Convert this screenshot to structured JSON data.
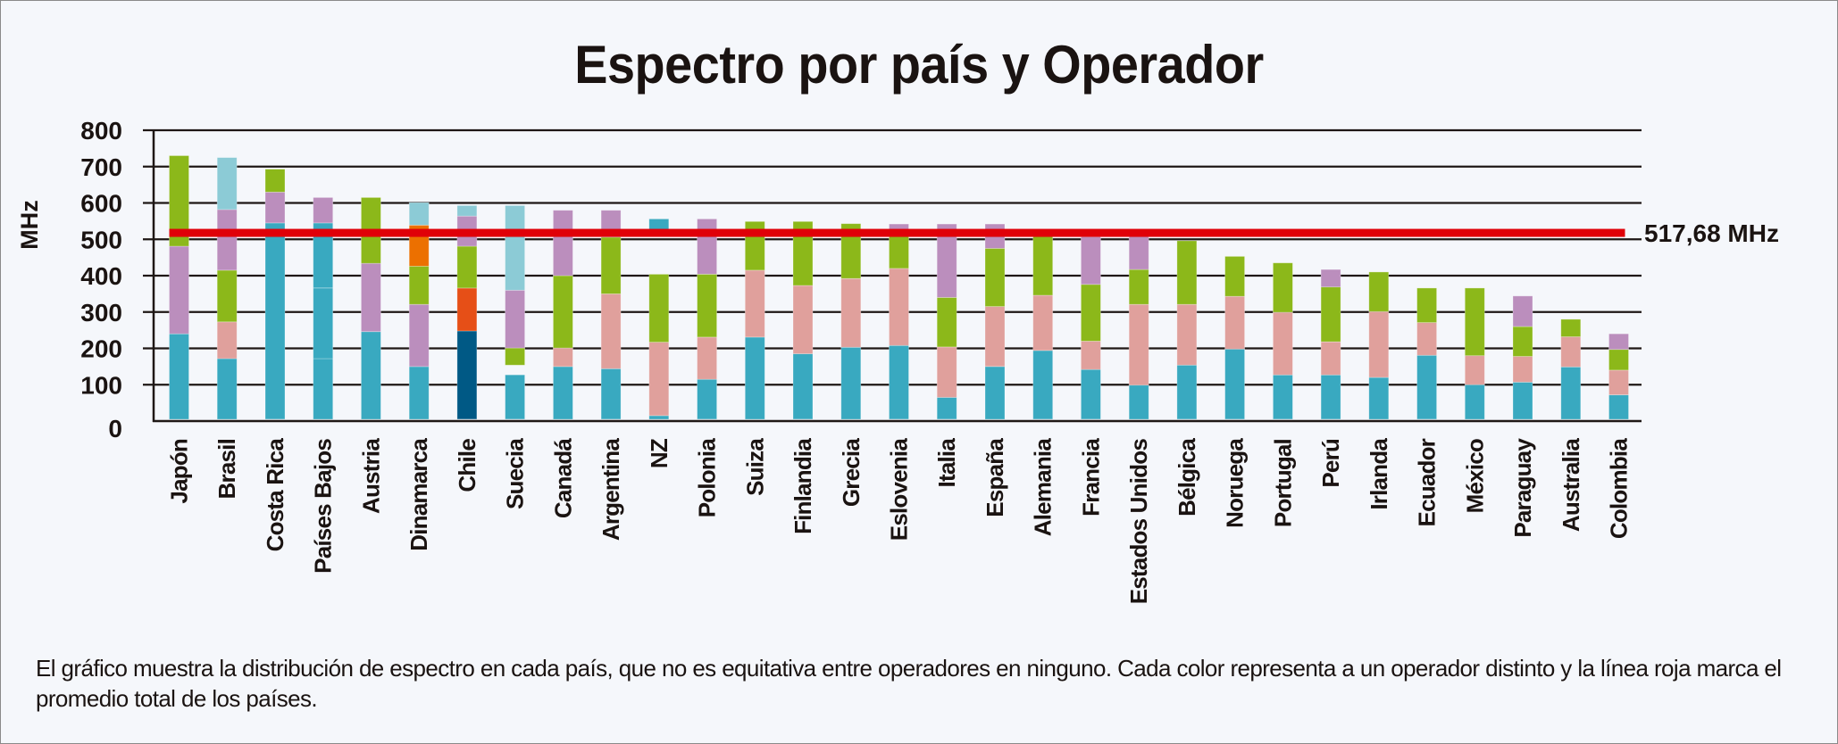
{
  "chart_data": {
    "type": "bar",
    "stacked": true,
    "title": "Espectro por país y Operador",
    "xlabel": "",
    "ylabel": "MHz",
    "ylim": [
      0,
      800
    ],
    "yticks": [
      "0",
      "100",
      "200",
      "300",
      "400",
      "500",
      "600",
      "700",
      "800"
    ],
    "grid": true,
    "legend": "none",
    "average": {
      "value": 517.68,
      "label": "517,68 MHz",
      "color": "#e00008"
    },
    "colors": {
      "teal": "#39a9c0",
      "lightblue": "#8ccbd6",
      "purple": "#bb8ebd",
      "green": "#8cb81a",
      "pink": "#e0a09c",
      "orange": "#ec7000",
      "redorange": "#e64f17",
      "darkblue": "#005985"
    },
    "categories": [
      "Japón",
      "Brasil",
      "Costa Rica",
      "Países Bajos",
      "Austria",
      "Dinamarca",
      "Chile",
      "Suecia",
      "Canadá",
      "Argentina",
      "NZ",
      "Polonia",
      "Suiza",
      "Finlandia",
      "Grecia",
      "Eslovenia",
      "Italia",
      "España",
      "Alemania",
      "Francia",
      "Estados Unidos",
      "Bélgica",
      "Noruega",
      "Portugal",
      "Perú",
      "Irlanda",
      "Ecuador",
      "México",
      "Paraguay",
      "Australia",
      "Colombia"
    ],
    "bars": [
      {
        "country": "Japón",
        "segments": [
          {
            "from": 5,
            "to": 240,
            "color": "teal"
          },
          {
            "from": 240,
            "to": 481,
            "color": "purple"
          },
          {
            "from": 481,
            "to": 730,
            "color": "green"
          }
        ]
      },
      {
        "country": "Brasil",
        "segments": [
          {
            "from": 5,
            "to": 172,
            "color": "teal"
          },
          {
            "from": 172,
            "to": 273,
            "color": "pink"
          },
          {
            "from": 273,
            "to": 415,
            "color": "green"
          },
          {
            "from": 415,
            "to": 582,
            "color": "purple"
          },
          {
            "from": 582,
            "to": 725,
            "color": "lightblue"
          }
        ]
      },
      {
        "country": "Costa Rica",
        "segments": [
          {
            "from": 5,
            "to": 545,
            "color": "teal"
          },
          {
            "from": 545,
            "to": 630,
            "color": "purple"
          },
          {
            "from": 630,
            "to": 693,
            "color": "green"
          }
        ]
      },
      {
        "country": "Países Bajos",
        "segments": [
          {
            "from": 5,
            "to": 172,
            "color": "teal"
          },
          {
            "from": 172,
            "to": 366,
            "color": "teal"
          },
          {
            "from": 366,
            "to": 545,
            "color": "teal"
          },
          {
            "from": 545,
            "to": 615,
            "color": "purple"
          }
        ]
      },
      {
        "country": "Austria",
        "segments": [
          {
            "from": 5,
            "to": 246,
            "color": "teal"
          },
          {
            "from": 246,
            "to": 434,
            "color": "purple"
          },
          {
            "from": 434,
            "to": 615,
            "color": "green"
          }
        ]
      },
      {
        "country": "Dinamarca",
        "segments": [
          {
            "from": 5,
            "to": 150,
            "color": "teal"
          },
          {
            "from": 150,
            "to": 321,
            "color": "purple"
          },
          {
            "from": 321,
            "to": 426,
            "color": "green"
          },
          {
            "from": 426,
            "to": 539,
            "color": "orange"
          },
          {
            "from": 539,
            "to": 601,
            "color": "lightblue"
          }
        ]
      },
      {
        "country": "Chile",
        "segments": [
          {
            "from": 5,
            "to": 248,
            "color": "darkblue"
          },
          {
            "from": 248,
            "to": 366,
            "color": "redorange"
          },
          {
            "from": 366,
            "to": 481,
            "color": "green"
          },
          {
            "from": 481,
            "to": 564,
            "color": "purple"
          },
          {
            "from": 564,
            "to": 593,
            "color": "lightblue"
          }
        ]
      },
      {
        "country": "Suecia",
        "segments": [
          {
            "from": 5,
            "to": 127,
            "color": "teal"
          },
          {
            "from": 154,
            "to": 201,
            "color": "green"
          },
          {
            "from": 201,
            "to": 360,
            "color": "purple"
          },
          {
            "from": 360,
            "to": 593,
            "color": "lightblue"
          }
        ]
      },
      {
        "country": "Canadá",
        "segments": [
          {
            "from": 5,
            "to": 150,
            "color": "teal"
          },
          {
            "from": 150,
            "to": 201,
            "color": "pink"
          },
          {
            "from": 201,
            "to": 400,
            "color": "green"
          },
          {
            "from": 400,
            "to": 580,
            "color": "purple"
          }
        ]
      },
      {
        "country": "Argentina",
        "segments": [
          {
            "from": 5,
            "to": 144,
            "color": "teal"
          },
          {
            "from": 144,
            "to": 350,
            "color": "pink"
          },
          {
            "from": 350,
            "to": 506,
            "color": "green"
          },
          {
            "from": 506,
            "to": 580,
            "color": "purple"
          }
        ]
      },
      {
        "country": "NZ",
        "segments": [
          {
            "from": 5,
            "to": 15,
            "color": "teal"
          },
          {
            "from": 15,
            "to": 217,
            "color": "pink"
          },
          {
            "from": 217,
            "to": 404,
            "color": "green"
          },
          {
            "from": 520,
            "to": 556,
            "color": "teal"
          }
        ]
      },
      {
        "country": "Polonia",
        "segments": [
          {
            "from": 5,
            "to": 115,
            "color": "teal"
          },
          {
            "from": 115,
            "to": 231,
            "color": "pink"
          },
          {
            "from": 231,
            "to": 404,
            "color": "green"
          },
          {
            "from": 404,
            "to": 556,
            "color": "purple"
          }
        ]
      },
      {
        "country": "Suiza",
        "segments": [
          {
            "from": 5,
            "to": 231,
            "color": "teal"
          },
          {
            "from": 231,
            "to": 415,
            "color": "pink"
          },
          {
            "from": 415,
            "to": 549,
            "color": "green"
          }
        ]
      },
      {
        "country": "Finlandia",
        "segments": [
          {
            "from": 5,
            "to": 185,
            "color": "teal"
          },
          {
            "from": 185,
            "to": 373,
            "color": "pink"
          },
          {
            "from": 373,
            "to": 549,
            "color": "green"
          }
        ]
      },
      {
        "country": "Grecia",
        "segments": [
          {
            "from": 5,
            "to": 203,
            "color": "teal"
          },
          {
            "from": 203,
            "to": 392,
            "color": "pink"
          },
          {
            "from": 392,
            "to": 543,
            "color": "green"
          }
        ]
      },
      {
        "country": "Eslovenia",
        "segments": [
          {
            "from": 5,
            "to": 208,
            "color": "teal"
          },
          {
            "from": 208,
            "to": 420,
            "color": "pink"
          },
          {
            "from": 420,
            "to": 510,
            "color": "green"
          },
          {
            "from": 510,
            "to": 542,
            "color": "purple"
          }
        ]
      },
      {
        "country": "Italia",
        "segments": [
          {
            "from": 5,
            "to": 65,
            "color": "teal"
          },
          {
            "from": 65,
            "to": 204,
            "color": "pink"
          },
          {
            "from": 204,
            "to": 340,
            "color": "green"
          },
          {
            "from": 340,
            "to": 542,
            "color": "purple"
          }
        ]
      },
      {
        "country": "España",
        "segments": [
          {
            "from": 5,
            "to": 150,
            "color": "teal"
          },
          {
            "from": 150,
            "to": 315,
            "color": "pink"
          },
          {
            "from": 315,
            "to": 475,
            "color": "green"
          },
          {
            "from": 475,
            "to": 542,
            "color": "purple"
          }
        ]
      },
      {
        "country": "Alemania",
        "segments": [
          {
            "from": 5,
            "to": 194,
            "color": "teal"
          },
          {
            "from": 194,
            "to": 346,
            "color": "pink"
          },
          {
            "from": 346,
            "to": 520,
            "color": "green"
          }
        ]
      },
      {
        "country": "Francia",
        "segments": [
          {
            "from": 5,
            "to": 142,
            "color": "teal"
          },
          {
            "from": 142,
            "to": 220,
            "color": "pink"
          },
          {
            "from": 220,
            "to": 376,
            "color": "green"
          },
          {
            "from": 376,
            "to": 507,
            "color": "purple"
          }
        ]
      },
      {
        "country": "Estados Unidos",
        "segments": [
          {
            "from": 5,
            "to": 99,
            "color": "teal"
          },
          {
            "from": 99,
            "to": 321,
            "color": "pink"
          },
          {
            "from": 321,
            "to": 417,
            "color": "green"
          },
          {
            "from": 417,
            "to": 508,
            "color": "purple"
          }
        ]
      },
      {
        "country": "Bélgica",
        "segments": [
          {
            "from": 5,
            "to": 154,
            "color": "teal"
          },
          {
            "from": 154,
            "to": 321,
            "color": "pink"
          },
          {
            "from": 321,
            "to": 496,
            "color": "green"
          }
        ]
      },
      {
        "country": "Noruega",
        "segments": [
          {
            "from": 5,
            "to": 198,
            "color": "teal"
          },
          {
            "from": 198,
            "to": 343,
            "color": "pink"
          },
          {
            "from": 343,
            "to": 453,
            "color": "green"
          }
        ]
      },
      {
        "country": "Portugal",
        "segments": [
          {
            "from": 5,
            "to": 127,
            "color": "teal"
          },
          {
            "from": 127,
            "to": 299,
            "color": "pink"
          },
          {
            "from": 299,
            "to": 435,
            "color": "green"
          }
        ]
      },
      {
        "country": "Perú",
        "segments": [
          {
            "from": 5,
            "to": 127,
            "color": "teal"
          },
          {
            "from": 127,
            "to": 218,
            "color": "pink"
          },
          {
            "from": 218,
            "to": 369,
            "color": "green"
          },
          {
            "from": 369,
            "to": 417,
            "color": "purple"
          }
        ]
      },
      {
        "country": "Irlanda",
        "segments": [
          {
            "from": 5,
            "to": 120,
            "color": "teal"
          },
          {
            "from": 120,
            "to": 301,
            "color": "pink"
          },
          {
            "from": 301,
            "to": 410,
            "color": "green"
          }
        ]
      },
      {
        "country": "Ecuador",
        "segments": [
          {
            "from": 5,
            "to": 181,
            "color": "teal"
          },
          {
            "from": 181,
            "to": 271,
            "color": "pink"
          },
          {
            "from": 271,
            "to": 366,
            "color": "green"
          }
        ]
      },
      {
        "country": "México",
        "segments": [
          {
            "from": 5,
            "to": 100,
            "color": "teal"
          },
          {
            "from": 100,
            "to": 180,
            "color": "pink"
          },
          {
            "from": 180,
            "to": 366,
            "color": "green"
          }
        ]
      },
      {
        "country": "Paraguay",
        "segments": [
          {
            "from": 5,
            "to": 107,
            "color": "teal"
          },
          {
            "from": 107,
            "to": 178,
            "color": "pink"
          },
          {
            "from": 178,
            "to": 260,
            "color": "green"
          },
          {
            "from": 260,
            "to": 344,
            "color": "purple"
          }
        ]
      },
      {
        "country": "Australia",
        "segments": [
          {
            "from": 5,
            "to": 149,
            "color": "teal"
          },
          {
            "from": 149,
            "to": 232,
            "color": "pink"
          },
          {
            "from": 232,
            "to": 280,
            "color": "green"
          }
        ]
      },
      {
        "country": "Colombia",
        "segments": [
          {
            "from": 5,
            "to": 72,
            "color": "teal"
          },
          {
            "from": 72,
            "to": 140,
            "color": "pink"
          },
          {
            "from": 140,
            "to": 197,
            "color": "green"
          },
          {
            "from": 197,
            "to": 240,
            "color": "purple"
          }
        ]
      }
    ]
  },
  "caption": "El gráfico muestra la distribución de espectro en cada país, que no es equitativa entre operadores en ninguno. Cada color representa a un operador distinto y la línea roja marca el promedio total de los países."
}
